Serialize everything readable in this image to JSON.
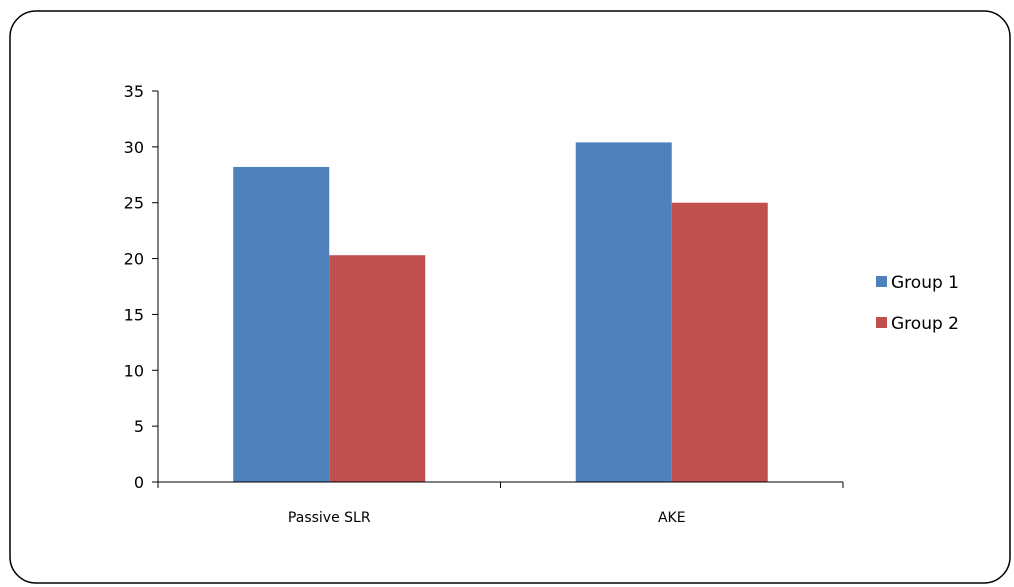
{
  "chart_data": {
    "type": "bar",
    "categories": [
      "Passive SLR",
      "AKE"
    ],
    "series": [
      {
        "name": "Group 1",
        "values": [
          28.2,
          30.4
        ],
        "color": "#4F81BD"
      },
      {
        "name": "Group 2",
        "values": [
          20.3,
          25.0
        ],
        "color": "#C0504D"
      }
    ],
    "ylim": [
      0,
      35
    ],
    "yticks": [
      0,
      5,
      10,
      15,
      20,
      25,
      30,
      35
    ],
    "ytick_labels": [
      "0",
      "5",
      "10",
      "15",
      "20",
      "25",
      "30",
      "35"
    ],
    "grid": false,
    "legend": "right"
  }
}
